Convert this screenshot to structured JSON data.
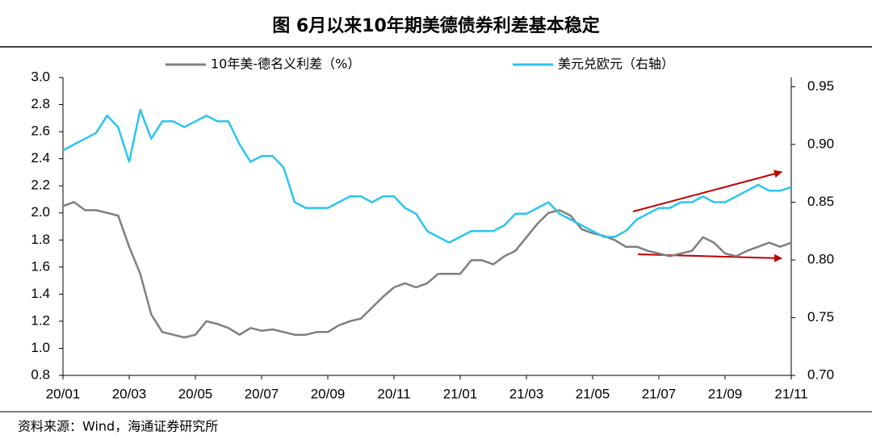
{
  "chart_data": {
    "type": "line",
    "title": "图 6月以来10年期美德债券利差基本稳定",
    "source": "资料来源：Wind，海通证券研究所",
    "categories": [
      "20/01",
      null,
      null,
      null,
      null,
      null,
      "20/03",
      null,
      null,
      null,
      null,
      null,
      "20/05",
      null,
      null,
      null,
      null,
      null,
      "20/07",
      null,
      null,
      null,
      null,
      null,
      "20/09",
      null,
      null,
      null,
      null,
      null,
      "20/11",
      null,
      null,
      null,
      null,
      null,
      "21/01",
      null,
      null,
      null,
      null,
      null,
      "21/03",
      null,
      null,
      null,
      null,
      null,
      "21/05",
      null,
      null,
      null,
      null,
      null,
      "21/07",
      null,
      null,
      null,
      null,
      null,
      "21/09",
      null,
      null,
      null,
      null,
      null,
      "21/11"
    ],
    "series": [
      {
        "name": "10年美-德名义利差（%）",
        "color": "#7f7f7f",
        "values": [
          2.05,
          2.08,
          2.02,
          2.02,
          2.0,
          1.98,
          1.75,
          1.55,
          1.25,
          1.12,
          1.1,
          1.08,
          1.1,
          1.2,
          1.18,
          1.15,
          1.1,
          1.15,
          1.13,
          1.14,
          1.12,
          1.1,
          1.1,
          1.12,
          1.12,
          1.17,
          1.2,
          1.22,
          1.3,
          1.38,
          1.45,
          1.48,
          1.45,
          1.48,
          1.55,
          1.55,
          1.55,
          1.65,
          1.65,
          1.62,
          1.68,
          1.72,
          1.82,
          1.92,
          2.0,
          2.02,
          1.98,
          1.88,
          1.85,
          1.83,
          1.8,
          1.75,
          1.75,
          1.72,
          1.7,
          1.68,
          1.7,
          1.72,
          1.82,
          1.78,
          1.7,
          1.68,
          1.72,
          1.75,
          1.78,
          1.75,
          1.78
        ]
      },
      {
        "name": "美元兑欧元（右轴）",
        "color": "#29c5f0",
        "axis": "y2",
        "values": [
          0.895,
          0.9,
          0.905,
          0.91,
          0.925,
          0.915,
          0.885,
          0.93,
          0.905,
          0.92,
          0.92,
          0.915,
          0.92,
          0.925,
          0.92,
          0.92,
          0.9,
          0.885,
          0.89,
          0.89,
          0.88,
          0.85,
          0.845,
          0.845,
          0.845,
          0.85,
          0.855,
          0.855,
          0.85,
          0.855,
          0.855,
          0.845,
          0.84,
          0.825,
          0.82,
          0.815,
          0.82,
          0.825,
          0.825,
          0.825,
          0.83,
          0.84,
          0.84,
          0.845,
          0.85,
          0.84,
          0.835,
          0.83,
          0.825,
          0.82,
          0.82,
          0.825,
          0.835,
          0.84,
          0.845,
          0.845,
          0.85,
          0.85,
          0.855,
          0.85,
          0.85,
          0.855,
          0.86,
          0.865,
          0.86,
          0.86,
          0.863
        ]
      }
    ],
    "ylim": [
      0.8,
      3.0
    ],
    "yticks": [
      0.8,
      {
        "value": 1.0,
        "label": "1.0"
      },
      1.2,
      1.4,
      1.6,
      1.8,
      {
        "value": 2.0,
        "label": "2.0"
      },
      2.2,
      2.4,
      2.6,
      2.8,
      {
        "value": 3.0,
        "label": "3.0"
      }
    ],
    "y2lim": [
      0.7,
      0.958
    ],
    "y2ticks": [
      {
        "value": 0.7,
        "label": "0.70"
      },
      {
        "value": 0.75,
        "label": "0.75"
      },
      {
        "value": 0.8,
        "label": "0.80"
      },
      {
        "value": 0.85,
        "label": "0.85"
      },
      {
        "value": 0.9,
        "label": "0.90"
      },
      {
        "value": 0.95,
        "label": "0.95"
      }
    ],
    "grid": false
  }
}
